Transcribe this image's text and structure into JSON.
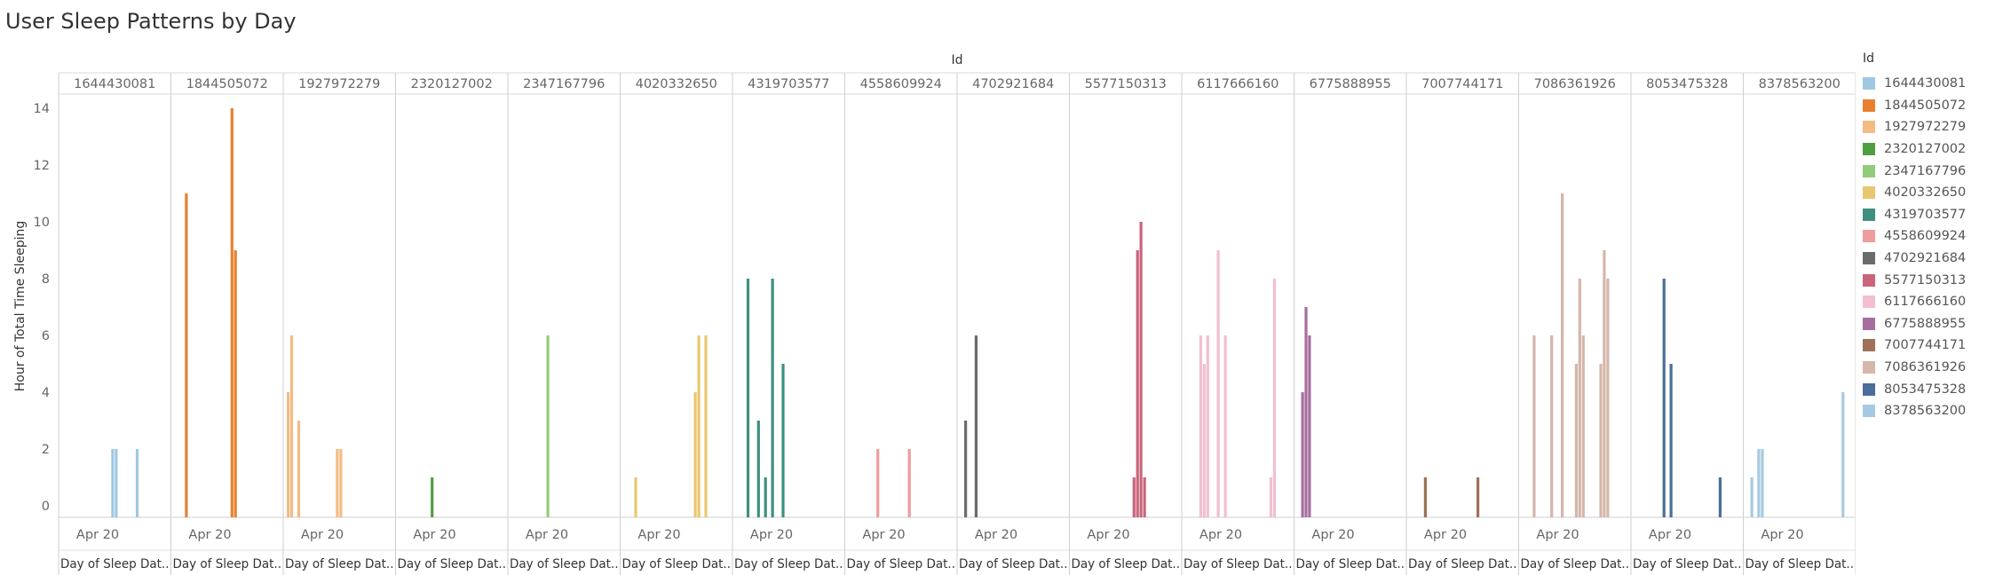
{
  "title": "User Sleep Patterns by Day",
  "colors": {
    "1644430081": "#9fc8e3",
    "1844505072": "#e8812f",
    "1927972279": "#f2bc83",
    "2320127002": "#4f9e3f",
    "2347167796": "#90cc7a",
    "4020332650": "#e9c76f",
    "4319703577": "#3f8f80",
    "4558609924": "#ee9c9c",
    "4702921684": "#6b6b6b",
    "5577150313": "#c9647c",
    "6117666160": "#f2bfd0",
    "6775888955": "#a66e9e",
    "7007744171": "#9e7158",
    "7086361926": "#d4b6aa",
    "8053475328": "#4b6e9a",
    "8378563200": "#a6c9e2"
  },
  "chart_data": {
    "type": "bar",
    "title": "User Sleep Patterns by Day",
    "column_header": "Id",
    "xlabel": "Day of Sleep Dat..",
    "x_tick": "Apr 20",
    "ylabel": "Hour of Total Time Sleeping",
    "ylim": [
      0,
      15
    ],
    "yticks": [
      "0",
      "2",
      "4",
      "6",
      "8",
      "10",
      "12",
      "14"
    ],
    "legend_title": "Id",
    "legend_position": "right",
    "panels": [
      {
        "id": "1644430081",
        "bars": [
          {
            "day": 15,
            "value": 2
          },
          {
            "day": 16,
            "value": 2
          },
          {
            "day": 22,
            "value": 2
          }
        ]
      },
      {
        "id": "1844505072",
        "bars": [
          {
            "day": 4,
            "value": 11
          },
          {
            "day": 17,
            "value": 14
          },
          {
            "day": 18,
            "value": 9
          }
        ]
      },
      {
        "id": "1927972279",
        "bars": [
          {
            "day": 1,
            "value": 4
          },
          {
            "day": 2,
            "value": 6
          },
          {
            "day": 4,
            "value": 3
          },
          {
            "day": 15,
            "value": 2
          },
          {
            "day": 16,
            "value": 2
          }
        ]
      },
      {
        "id": "2320127002",
        "bars": [
          {
            "day": 10,
            "value": 1
          }
        ]
      },
      {
        "id": "2347167796",
        "bars": [
          {
            "day": 11,
            "value": 6
          }
        ]
      },
      {
        "id": "4020332650",
        "bars": [
          {
            "day": 4,
            "value": 1
          },
          {
            "day": 21,
            "value": 4
          },
          {
            "day": 22,
            "value": 6
          },
          {
            "day": 24,
            "value": 6
          }
        ]
      },
      {
        "id": "4319703577",
        "bars": [
          {
            "day": 4,
            "value": 8
          },
          {
            "day": 7,
            "value": 3
          },
          {
            "day": 9,
            "value": 1
          },
          {
            "day": 11,
            "value": 8
          },
          {
            "day": 14,
            "value": 5
          }
        ]
      },
      {
        "id": "4558609924",
        "bars": [
          {
            "day": 9,
            "value": 2
          },
          {
            "day": 18,
            "value": 2
          }
        ]
      },
      {
        "id": "4702921684",
        "bars": [
          {
            "day": 2,
            "value": 3
          },
          {
            "day": 5,
            "value": 6
          }
        ]
      },
      {
        "id": "5577150313",
        "bars": [
          {
            "day": 18,
            "value": 1
          },
          {
            "day": 19,
            "value": 9
          },
          {
            "day": 20,
            "value": 10
          },
          {
            "day": 21,
            "value": 1
          }
        ]
      },
      {
        "id": "6117666160",
        "bars": [
          {
            "day": 5,
            "value": 6
          },
          {
            "day": 6,
            "value": 5
          },
          {
            "day": 7,
            "value": 6
          },
          {
            "day": 10,
            "value": 9
          },
          {
            "day": 12,
            "value": 6
          },
          {
            "day": 25,
            "value": 1
          },
          {
            "day": 26,
            "value": 8
          }
        ]
      },
      {
        "id": "6775888955",
        "bars": [
          {
            "day": 2,
            "value": 4
          },
          {
            "day": 3,
            "value": 7
          },
          {
            "day": 4,
            "value": 6
          }
        ]
      },
      {
        "id": "7007744171",
        "bars": [
          {
            "day": 5,
            "value": 1
          },
          {
            "day": 20,
            "value": 1
          }
        ]
      },
      {
        "id": "7086361926",
        "bars": [
          {
            "day": 4,
            "value": 6
          },
          {
            "day": 9,
            "value": 6
          },
          {
            "day": 12,
            "value": 11
          },
          {
            "day": 16,
            "value": 5
          },
          {
            "day": 17,
            "value": 8
          },
          {
            "day": 18,
            "value": 6
          },
          {
            "day": 23,
            "value": 5
          },
          {
            "day": 24,
            "value": 9
          },
          {
            "day": 25,
            "value": 8
          }
        ]
      },
      {
        "id": "8053475328",
        "bars": [
          {
            "day": 9,
            "value": 8
          },
          {
            "day": 11,
            "value": 5
          },
          {
            "day": 25,
            "value": 1
          }
        ]
      },
      {
        "id": "8378563200",
        "bars": [
          {
            "day": 2,
            "value": 1
          },
          {
            "day": 4,
            "value": 2
          },
          {
            "day": 5,
            "value": 2
          },
          {
            "day": 28,
            "value": 4
          }
        ]
      }
    ]
  }
}
